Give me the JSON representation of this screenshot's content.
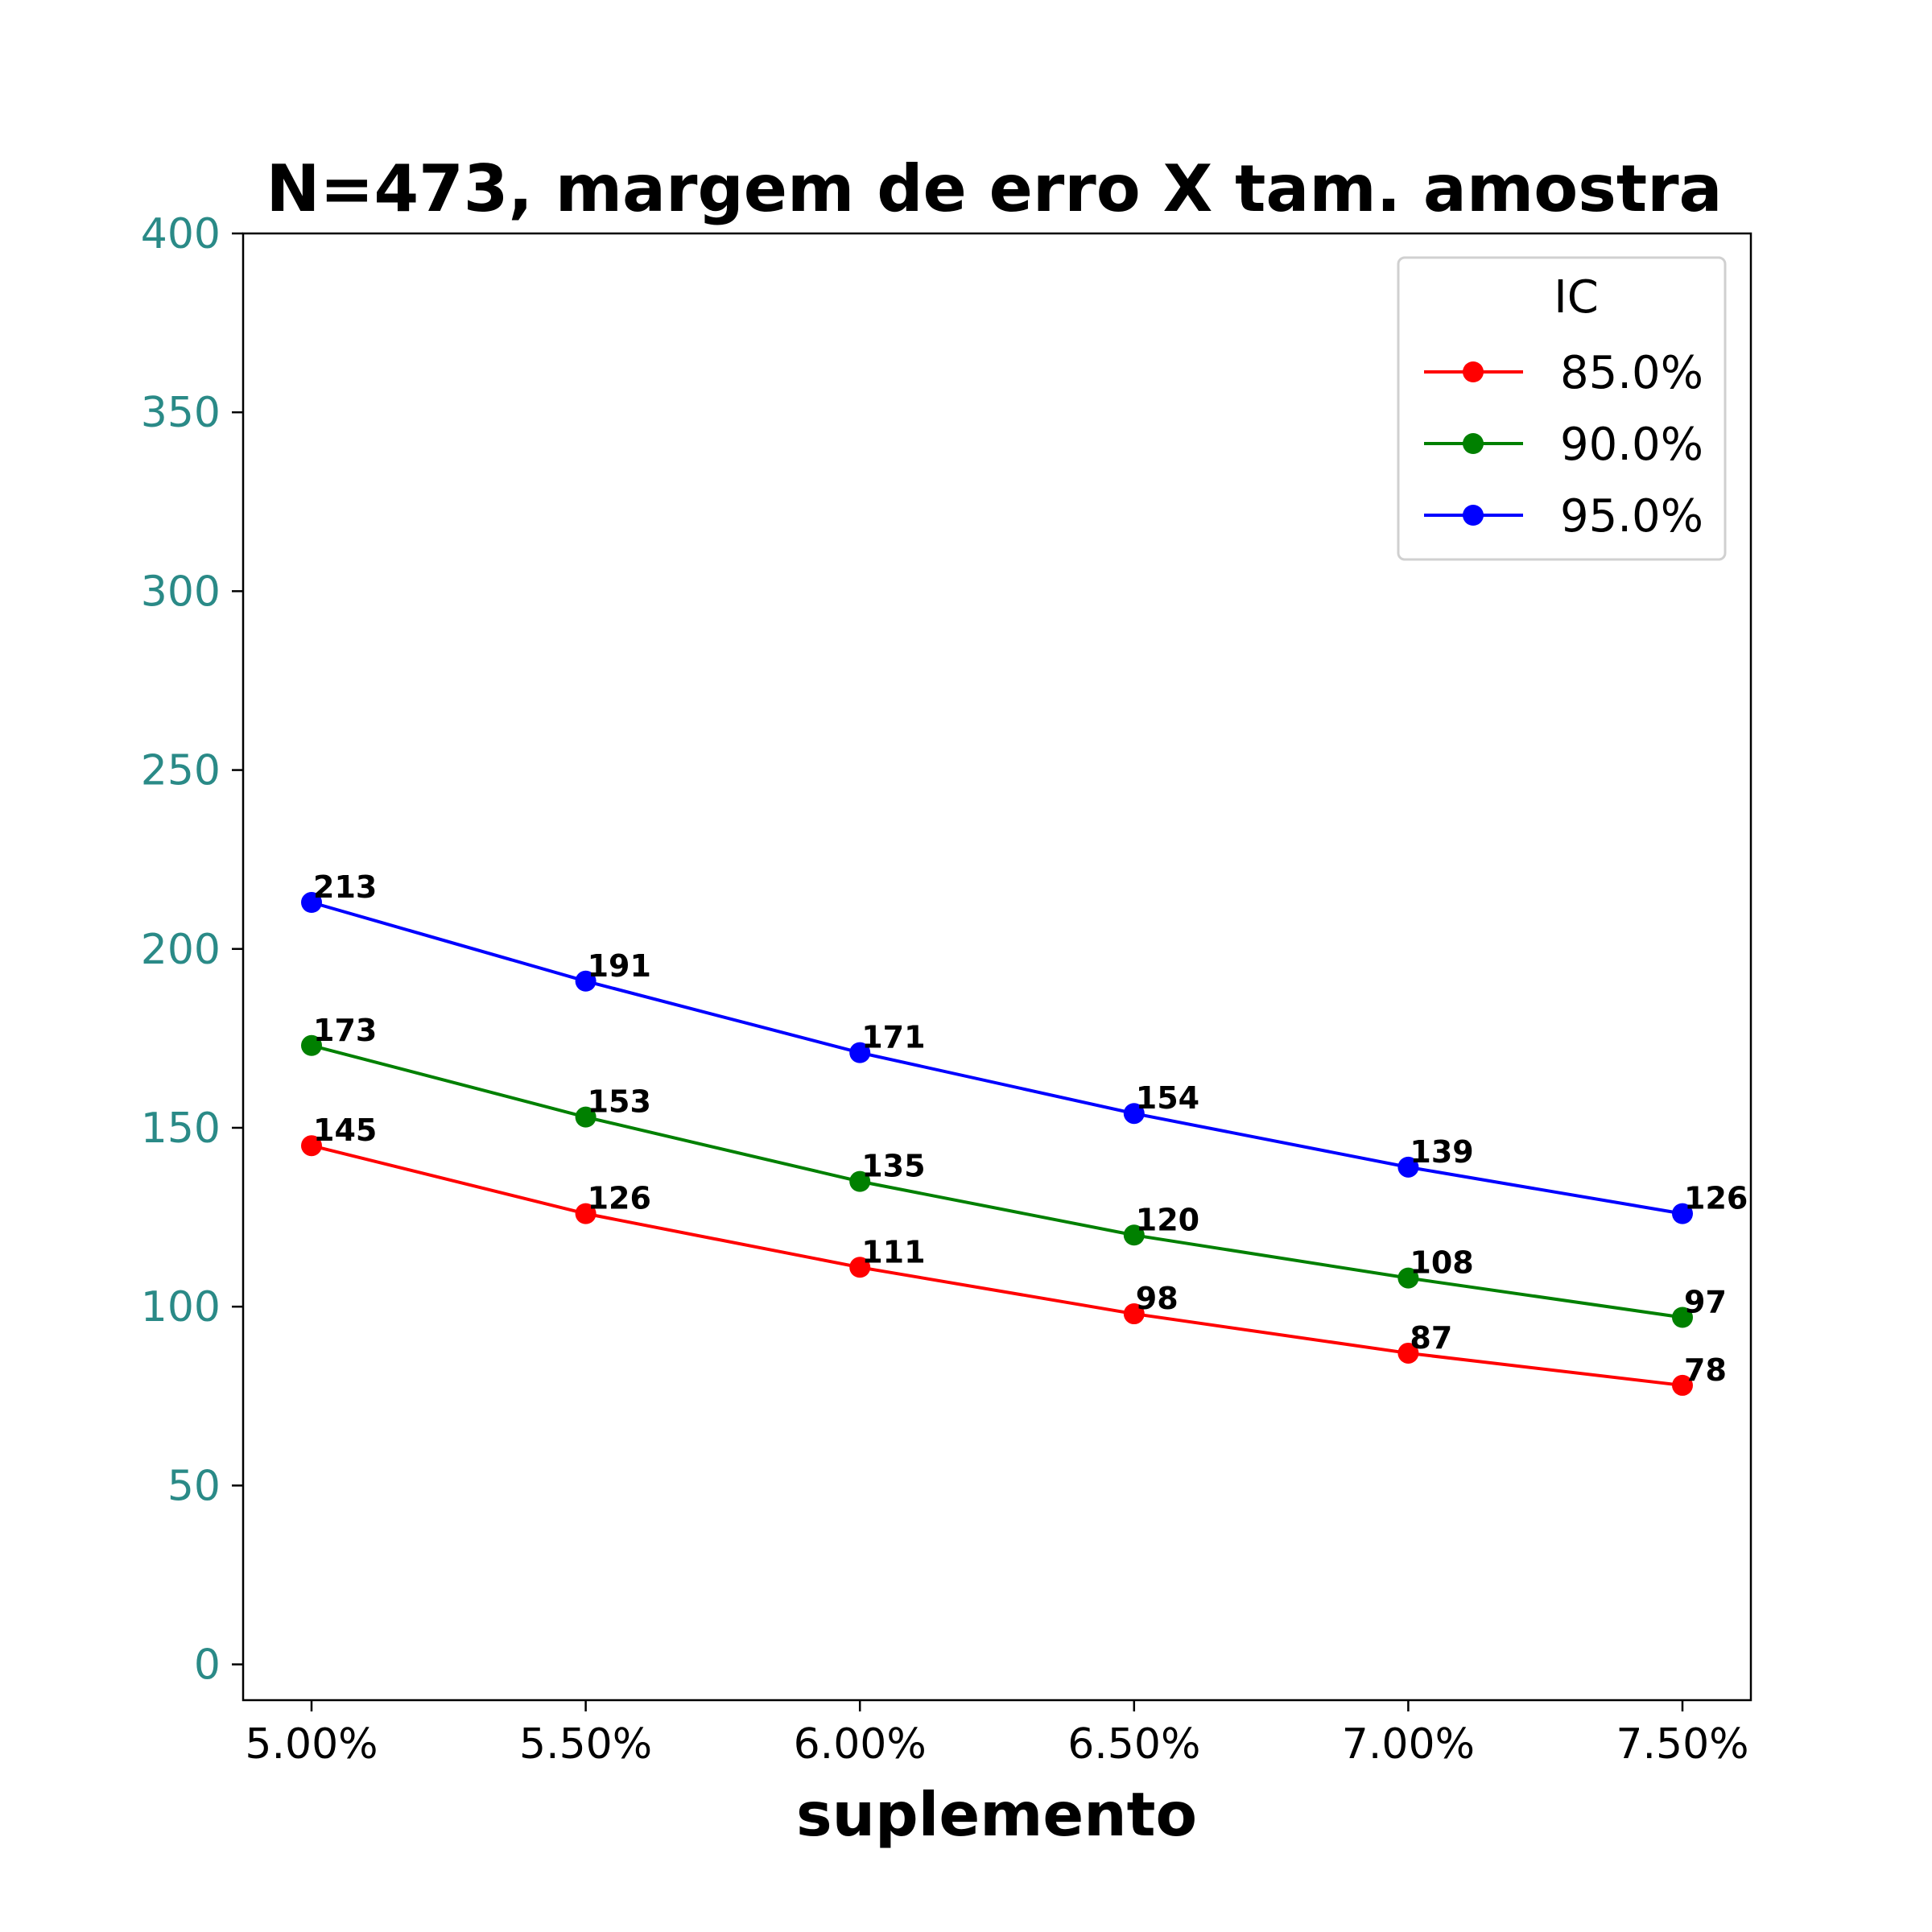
{
  "chart_data": {
    "type": "line",
    "title": "N=473, margem de erro X tam. amostra",
    "xlabel": "suplemento",
    "ylabel": "",
    "categories": [
      "5.00%",
      "5.50%",
      "6.00%",
      "6.50%",
      "7.00%",
      "7.50%"
    ],
    "ylim": [
      -10,
      400
    ],
    "yticks": [
      0,
      50,
      100,
      150,
      200,
      250,
      300,
      350,
      400
    ],
    "ytick_color": "#2a8a87",
    "grid": false,
    "legend": {
      "title": "IC",
      "position": "top-right"
    },
    "series": [
      {
        "name": "85.0%",
        "color": "#ff0000",
        "values": [
          145,
          126,
          111,
          98,
          87,
          78
        ]
      },
      {
        "name": "90.0%",
        "color": "#008000",
        "values": [
          173,
          153,
          135,
          120,
          108,
          97
        ]
      },
      {
        "name": "95.0%",
        "color": "#0000ff",
        "values": [
          213,
          191,
          171,
          154,
          139,
          126
        ]
      }
    ]
  }
}
